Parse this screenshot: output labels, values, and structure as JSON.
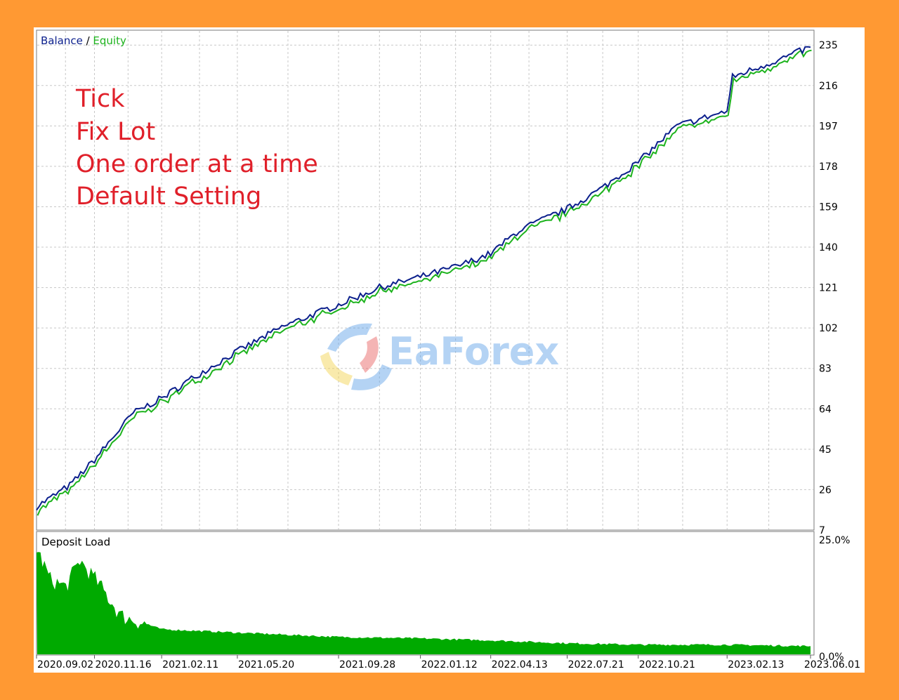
{
  "legend": {
    "balance": "Balance",
    "separator": " / ",
    "equity": "Equity"
  },
  "notes": [
    "Tick",
    "Fix Lot",
    "One order at a time",
    "Default Setting"
  ],
  "watermark": "EaForex",
  "colors": {
    "balance": "#0B1F8C",
    "equity": "#1DB31D",
    "deposit_load": "#00AA00",
    "notes": "#E0202A",
    "frame": "#FF9933",
    "grid": "#C8C8C8"
  },
  "chart_data": [
    {
      "type": "line",
      "series": [
        {
          "name": "Balance",
          "color": "#0B1F8C"
        },
        {
          "name": "Equity",
          "color": "#1DB31D"
        }
      ],
      "x": [
        "2020.09.02",
        "2020.10.15",
        "2020.11.16",
        "2021.01.05",
        "2021.02.11",
        "2021.03.25",
        "2021.05.20",
        "2021.07.20",
        "2021.09.28",
        "2021.11.20",
        "2022.01.12",
        "2022.03.01",
        "2022.04.13",
        "2022.05.20",
        "2022.07.21",
        "2022.09.01",
        "2022.10.21",
        "2022.12.10",
        "2023.02.13",
        "2023.02.20",
        "2023.04.20",
        "2023.06.01"
      ],
      "y": [
        18,
        28,
        40,
        62,
        69,
        79,
        91,
        103,
        113,
        121,
        126,
        131,
        137,
        148,
        158,
        167,
        180,
        197,
        204,
        220,
        228,
        234
      ],
      "y_ticks": [
        "235",
        "216",
        "197",
        "178",
        "159",
        "140",
        "121",
        "102",
        "83",
        "64",
        "45",
        "26",
        "7"
      ],
      "ylim": [
        7,
        242
      ],
      "grid": true,
      "legend": "top-left"
    },
    {
      "type": "area",
      "title": "Deposit Load",
      "x": [
        "2020.09.02",
        "2020.09.20",
        "2020.10.10",
        "2020.10.28",
        "2020.11.20",
        "2020.12.20",
        "2021.02.11",
        "2021.05.20",
        "2021.09.28",
        "2022.01.12",
        "2022.04.13",
        "2022.07.21",
        "2022.10.21",
        "2023.02.13",
        "2023.06.01"
      ],
      "y": [
        22.0,
        15.5,
        14.0,
        19.5,
        15.0,
        8.0,
        5.2,
        4.5,
        3.6,
        3.3,
        2.9,
        2.3,
        2.0,
        2.0,
        1.7
      ],
      "y_ticks": [
        "25.0%",
        "0.0%"
      ],
      "ylim": [
        0,
        25
      ],
      "x_ticks": [
        "2020.09.02",
        "2020.11.16",
        "2021.02.11",
        "2021.05.20",
        "2021.09.28",
        "2022.01.12",
        "2022.04.13",
        "2022.07.21",
        "2022.10.21",
        "2023.02.13",
        "2023.06.01"
      ],
      "grid": false
    }
  ]
}
